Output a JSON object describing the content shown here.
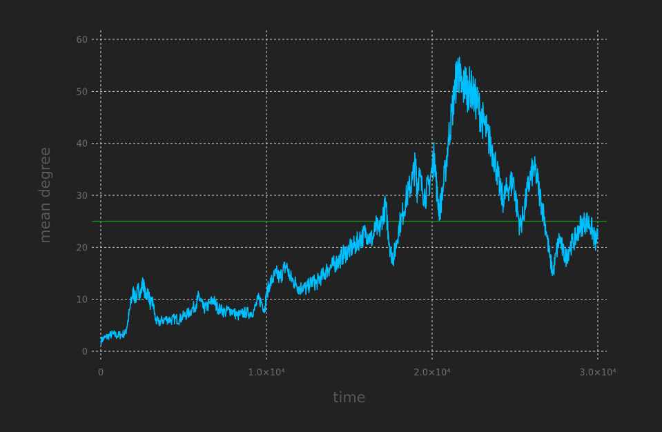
{
  "chart_data": {
    "type": "line",
    "title": "",
    "xlabel": "time",
    "ylabel": "mean degree",
    "xlim": [
      0,
      30000
    ],
    "ylim": [
      0,
      60
    ],
    "grid": true,
    "x_ticks": [
      {
        "value": 0,
        "label": "0"
      },
      {
        "value": 10000,
        "label": "1.0×10⁴"
      },
      {
        "value": 20000,
        "label": "2.0×10⁴"
      },
      {
        "value": 30000,
        "label": "3.0×10⁴"
      }
    ],
    "y_ticks": [
      {
        "value": 0,
        "label": "0"
      },
      {
        "value": 10,
        "label": "10"
      },
      {
        "value": 20,
        "label": "20"
      },
      {
        "value": 30,
        "label": "30"
      },
      {
        "value": 40,
        "label": "40"
      },
      {
        "value": 50,
        "label": "50"
      },
      {
        "value": 60,
        "label": "60"
      }
    ],
    "series": [
      {
        "color": "#00bfff",
        "points": [
          [
            0,
            2
          ],
          [
            250,
            2.6
          ],
          [
            500,
            3
          ],
          [
            750,
            3.3
          ],
          [
            1000,
            3
          ],
          [
            1250,
            3.2
          ],
          [
            1500,
            3.5
          ],
          [
            1650,
            6
          ],
          [
            1800,
            9
          ],
          [
            1950,
            11.5
          ],
          [
            2100,
            10
          ],
          [
            2250,
            12
          ],
          [
            2400,
            11
          ],
          [
            2550,
            13.5
          ],
          [
            2700,
            10.5
          ],
          [
            2850,
            11.5
          ],
          [
            3000,
            9
          ],
          [
            3150,
            9.5
          ],
          [
            3300,
            6
          ],
          [
            3500,
            5.5
          ],
          [
            3750,
            6
          ],
          [
            4000,
            6.2
          ],
          [
            4250,
            6
          ],
          [
            4500,
            6.3
          ],
          [
            4750,
            6.1
          ],
          [
            5000,
            6.8
          ],
          [
            5250,
            7.2
          ],
          [
            5500,
            8
          ],
          [
            5750,
            9
          ],
          [
            5900,
            10.5
          ],
          [
            6050,
            9.5
          ],
          [
            6200,
            8.2
          ],
          [
            6400,
            8.5
          ],
          [
            6600,
            9.2
          ],
          [
            6800,
            10
          ],
          [
            7000,
            8.5
          ],
          [
            7250,
            8
          ],
          [
            7500,
            7.5
          ],
          [
            7750,
            8
          ],
          [
            8000,
            7.6
          ],
          [
            8250,
            6.8
          ],
          [
            8500,
            7.2
          ],
          [
            8750,
            7.5
          ],
          [
            9000,
            7.3
          ],
          [
            9250,
            7.8
          ],
          [
            9500,
            10
          ],
          [
            9700,
            9.5
          ],
          [
            9900,
            8
          ],
          [
            10000,
            11
          ],
          [
            10200,
            13
          ],
          [
            10400,
            14
          ],
          [
            10600,
            15
          ],
          [
            10800,
            14
          ],
          [
            11000,
            15.5
          ],
          [
            11200,
            16.5
          ],
          [
            11400,
            14.5
          ],
          [
            11600,
            13.5
          ],
          [
            11800,
            13
          ],
          [
            12000,
            12
          ],
          [
            12200,
            12.5
          ],
          [
            12400,
            12
          ],
          [
            12600,
            12.8
          ],
          [
            12800,
            13.5
          ],
          [
            13000,
            13
          ],
          [
            13200,
            14
          ],
          [
            13400,
            14.5
          ],
          [
            13600,
            15.5
          ],
          [
            13800,
            16
          ],
          [
            14000,
            16.5
          ],
          [
            14200,
            17
          ],
          [
            14400,
            17.5
          ],
          [
            14600,
            18.5
          ],
          [
            14800,
            19
          ],
          [
            15000,
            19.5
          ],
          [
            15200,
            20
          ],
          [
            15400,
            20.5
          ],
          [
            15600,
            21.5
          ],
          [
            15800,
            22
          ],
          [
            16000,
            23
          ],
          [
            16200,
            22
          ],
          [
            16400,
            21.5
          ],
          [
            16600,
            24
          ],
          [
            16800,
            23
          ],
          [
            17000,
            26
          ],
          [
            17200,
            28
          ],
          [
            17350,
            23
          ],
          [
            17500,
            19
          ],
          [
            17650,
            18
          ],
          [
            17800,
            20
          ],
          [
            18000,
            24
          ],
          [
            18200,
            26
          ],
          [
            18400,
            29
          ],
          [
            18600,
            31
          ],
          [
            18800,
            33
          ],
          [
            19000,
            36
          ],
          [
            19100,
            31
          ],
          [
            19200,
            34
          ],
          [
            19400,
            31
          ],
          [
            19600,
            30
          ],
          [
            19800,
            32
          ],
          [
            20000,
            35
          ],
          [
            20150,
            38
          ],
          [
            20300,
            30
          ],
          [
            20450,
            27
          ],
          [
            20600,
            30
          ],
          [
            20800,
            35
          ],
          [
            21000,
            41
          ],
          [
            21200,
            46
          ],
          [
            21400,
            51
          ],
          [
            21550,
            54.5
          ],
          [
            21700,
            52
          ],
          [
            21850,
            50
          ],
          [
            22000,
            52
          ],
          [
            22150,
            50
          ],
          [
            22300,
            51
          ],
          [
            22500,
            49
          ],
          [
            22700,
            48
          ],
          [
            22900,
            46
          ],
          [
            23100,
            44
          ],
          [
            23300,
            42
          ],
          [
            23500,
            40
          ],
          [
            23700,
            38
          ],
          [
            23900,
            35
          ],
          [
            24100,
            31
          ],
          [
            24300,
            29
          ],
          [
            24500,
            31
          ],
          [
            24700,
            32
          ],
          [
            24900,
            33
          ],
          [
            25100,
            28
          ],
          [
            25300,
            24
          ],
          [
            25500,
            26
          ],
          [
            25700,
            30
          ],
          [
            25900,
            33
          ],
          [
            26100,
            35
          ],
          [
            26300,
            34
          ],
          [
            26500,
            30
          ],
          [
            26700,
            27
          ],
          [
            26900,
            23
          ],
          [
            27100,
            18
          ],
          [
            27300,
            15
          ],
          [
            27500,
            19
          ],
          [
            27700,
            22
          ],
          [
            27900,
            19
          ],
          [
            28100,
            18
          ],
          [
            28300,
            20
          ],
          [
            28500,
            21
          ],
          [
            28700,
            22
          ],
          [
            28900,
            24
          ],
          [
            29100,
            24.5
          ],
          [
            29300,
            25
          ],
          [
            29500,
            24.5
          ],
          [
            29700,
            23
          ],
          [
            29850,
            21
          ],
          [
            30000,
            22
          ]
        ]
      }
    ],
    "hline": {
      "value": 25,
      "color": "#1a8c1a"
    }
  }
}
